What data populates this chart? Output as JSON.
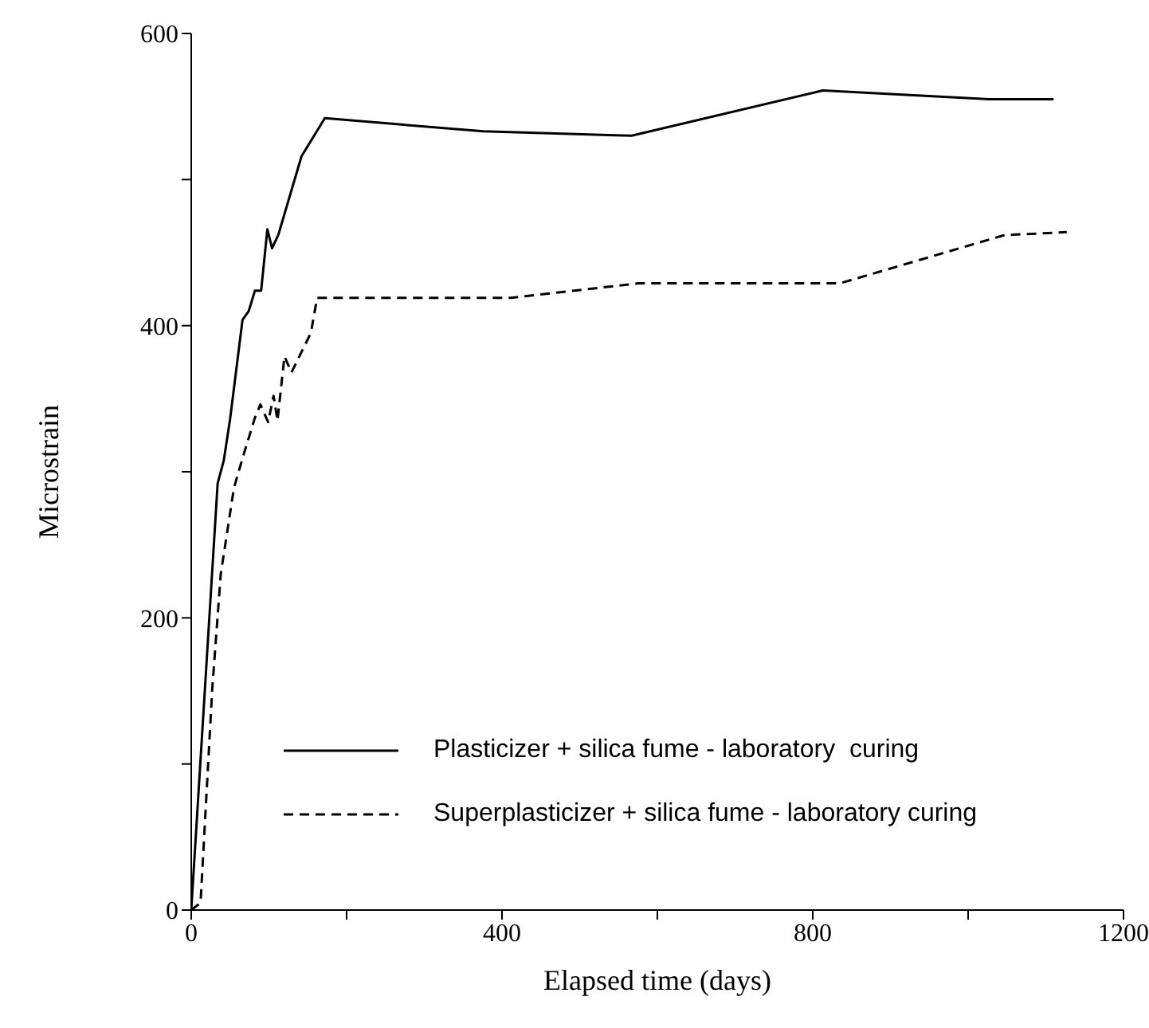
{
  "chart_data": {
    "type": "line",
    "xlabel": "Elapsed time (days)",
    "ylabel": "Microstrain",
    "xlim": [
      0,
      1200
    ],
    "xticks": [
      0,
      {
        "value": 200,
        "label": null
      },
      400,
      {
        "value": 600,
        "label": null
      },
      800,
      {
        "value": 1000,
        "label": null
      },
      1200
    ],
    "ylim": [
      0,
      600
    ],
    "yticks": [
      0,
      {
        "value": 100,
        "label": null
      },
      200,
      {
        "value": 300,
        "label": null
      },
      400,
      {
        "value": 500,
        "label": null
      },
      600
    ],
    "legend": "bottom right",
    "marker": "none",
    "series": [
      {
        "name": "Plasticizer + silica fume - laboratory  curing",
        "color": "#000000",
        "line_style": "solid",
        "x": [
          0,
          34,
          42,
          50,
          66,
          74,
          82,
          90,
          98,
          104,
          112,
          142,
          172,
          376,
          567,
          813,
          1027,
          1110
        ],
        "values": [
          0,
          292,
          308,
          336,
          404,
          410,
          424,
          424,
          466,
          453,
          462,
          516,
          542,
          533,
          530,
          561,
          555,
          555
        ]
      },
      {
        "name": "Superplasticizer + silica fume - laboratory curing",
        "color": "#000000",
        "line_style": "dashed",
        "x": [
          0,
          12,
          27,
          38,
          55,
          67,
          82,
          89,
          99,
          106,
          111,
          120,
          129,
          154,
          162,
          411,
          576,
          835,
          1047,
          1127
        ],
        "values": [
          0,
          5,
          151,
          230,
          289,
          311,
          337,
          346,
          334,
          352,
          335,
          379,
          368,
          395,
          419,
          419,
          429,
          429,
          462,
          464
        ]
      }
    ]
  }
}
